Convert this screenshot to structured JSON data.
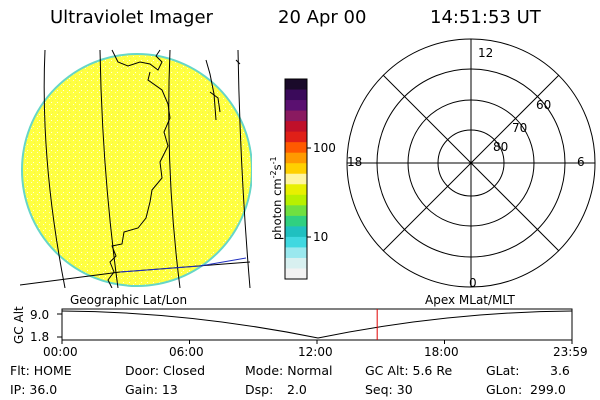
{
  "header": {
    "instrument": "Ultraviolet Imager",
    "date": "20 Apr 00",
    "time": "14:51:53 UT"
  },
  "colorbar": {
    "unit_label_main": "photon cm",
    "unit_exp1": "-2",
    "unit_s": "s",
    "unit_exp2": "-1",
    "ticks": [
      {
        "value": 100,
        "label": "100"
      },
      {
        "value": 10,
        "label": "10"
      }
    ],
    "colors_top_to_bottom": [
      "#1a0a2a",
      "#3a0a5a",
      "#5a1070",
      "#8a1a60",
      "#c0102a",
      "#e02018",
      "#ff5a00",
      "#ff9a00",
      "#ffd000",
      "#fff5a0",
      "#e8f000",
      "#b8f000",
      "#70e040",
      "#30d080",
      "#20c0c0",
      "#40d8e0",
      "#9ae8ee",
      "#d8f0f0",
      "#f2f2f2"
    ]
  },
  "left_panel": {
    "caption": "Geographic Lat/Lon",
    "disk_color": "#ffff40"
  },
  "right_panel": {
    "caption": "Apex MLat/MLT",
    "mlt_labels": {
      "top": "12",
      "right": "6",
      "bottom": "0",
      "left": "18"
    },
    "lat_labels": [
      "60",
      "70",
      "80"
    ]
  },
  "timeline": {
    "ylabel": "GC Alt",
    "ytick_top": "9.0",
    "ytick_bottom": "1.8",
    "xticks": [
      "00:00",
      "06:00",
      "12:00",
      "18:00",
      "23:59"
    ],
    "current_time_fraction": 0.618,
    "marker_color": "#e00000"
  },
  "info": {
    "row1": {
      "flt": "Flt: HOME",
      "door": "Door: Closed",
      "mode": "Mode: Normal",
      "gcalt": "GC Alt: 5.6 Re",
      "glat_label": "GLat:",
      "glat_value": "3.6"
    },
    "row2": {
      "ip": "IP: 36.0",
      "gain": "Gain: 13",
      "dsp_label": "Dsp:",
      "dsp_value": "2.0",
      "seq": "Seq: 30",
      "glon_label": "GLon:",
      "glon_value": "299.0"
    }
  }
}
